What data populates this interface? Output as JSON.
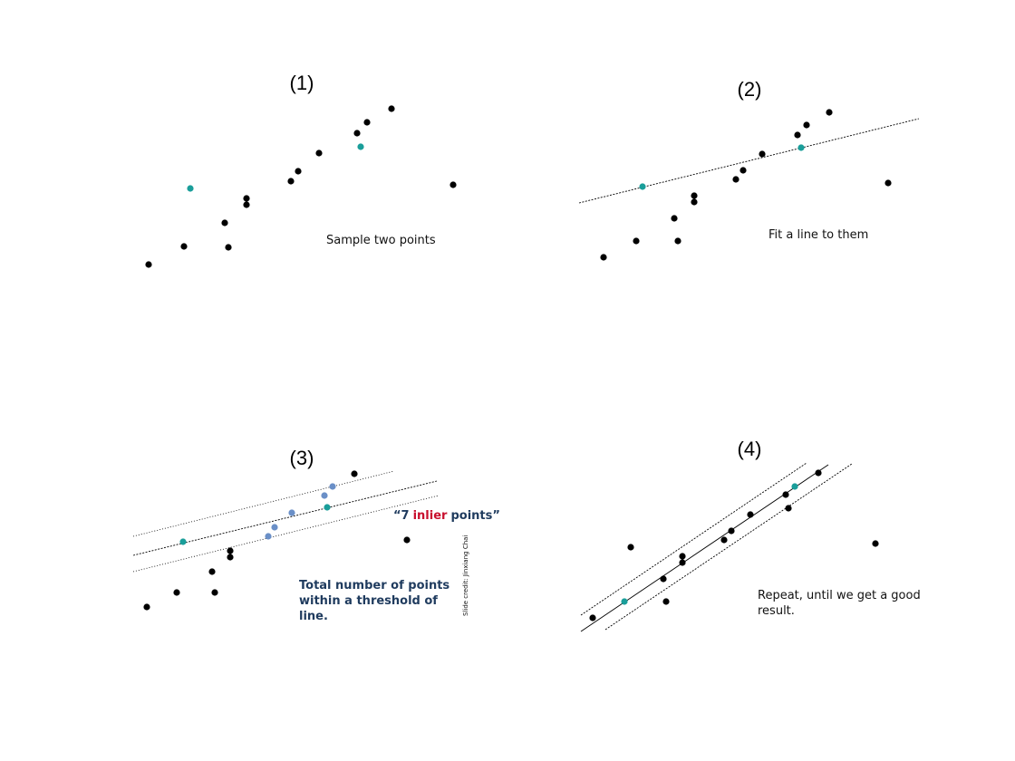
{
  "colors": {
    "point": "#000000",
    "sample": "#1a9e9a",
    "inlier": "#6a8fc7",
    "highlight": "#c8102e",
    "navy": "#1f3b5e",
    "line": "#000000"
  },
  "panels": [
    {
      "label": "(1)",
      "caption_lines": [
        "Sample two points"
      ],
      "black_points": [
        [
          164,
          292
        ],
        [
          203,
          272
        ],
        [
          252,
          273
        ],
        [
          248,
          246
        ],
        [
          272,
          226
        ],
        [
          272,
          219
        ],
        [
          321,
          200
        ],
        [
          329,
          189
        ],
        [
          352,
          169
        ],
        [
          394,
          147
        ],
        [
          405,
          135
        ],
        [
          432,
          120
        ],
        [
          500,
          204
        ]
      ],
      "sample_points": [
        [
          210,
          208
        ],
        [
          398,
          162
        ]
      ],
      "inlier_points": [],
      "lines": []
    },
    {
      "label": "(2)",
      "caption_lines": [
        "Fit a line to them"
      ],
      "black_points": [
        [
          666,
          284
        ],
        [
          702,
          266
        ],
        [
          748,
          266
        ],
        [
          744,
          241
        ],
        [
          766,
          223
        ],
        [
          766,
          216
        ],
        [
          812,
          198
        ],
        [
          820,
          188
        ],
        [
          841,
          170
        ],
        [
          880,
          149
        ],
        [
          890,
          138
        ],
        [
          915,
          124
        ],
        [
          980,
          202
        ]
      ],
      "sample_points": [
        [
          709,
          206
        ],
        [
          884,
          163
        ]
      ],
      "inlier_points": [],
      "lines": [
        {
          "p1": [
            639,
            224
          ],
          "p2": [
            1014,
            131
          ],
          "style": "dense"
        }
      ]
    },
    {
      "label": "(3)",
      "caption_lines": [
        "Total number of points",
        "within a threshold of",
        "line."
      ],
      "annotation": {
        "open_quote": "“",
        "count": "7",
        "highlight": "inlier",
        "rest": "points”"
      },
      "credit": "Slide credit: Jinxiang Chai",
      "black_points": [
        [
          162,
          670
        ],
        [
          195,
          654
        ],
        [
          237,
          654
        ],
        [
          234,
          631
        ],
        [
          254,
          615
        ],
        [
          254,
          608
        ],
        [
          391,
          523
        ],
        [
          449,
          596
        ]
      ],
      "sample_points": [
        [
          202,
          598
        ],
        [
          361,
          560
        ]
      ],
      "inlier_points": [
        [
          296,
          592
        ],
        [
          303,
          582
        ],
        [
          322,
          566
        ],
        [
          358,
          547
        ],
        [
          367,
          537
        ]
      ],
      "lines": [
        {
          "p1": [
            147,
            613
          ],
          "p2": [
            482,
            531
          ],
          "style": "dense"
        },
        {
          "p1": [
            147,
            592
          ],
          "p2": [
            435,
            520
          ],
          "style": "sparse"
        },
        {
          "p1": [
            147,
            631
          ],
          "p2": [
            484,
            547
          ],
          "style": "sparse"
        }
      ]
    },
    {
      "label": "(4)",
      "caption_lines": [
        "Repeat, until we get a good",
        "result."
      ],
      "black_points": [
        [
          696,
          604
        ],
        [
          654,
          682
        ],
        [
          735,
          664
        ],
        [
          732,
          639
        ],
        [
          753,
          621
        ],
        [
          753,
          614
        ],
        [
          799,
          596
        ],
        [
          807,
          586
        ],
        [
          828,
          568
        ],
        [
          867,
          546
        ],
        [
          870,
          561
        ],
        [
          903,
          522
        ],
        [
          966,
          600
        ]
      ],
      "sample_points": [
        [
          689,
          664
        ],
        [
          877,
          537
        ]
      ],
      "inlier_points": [],
      "lines": [
        {
          "p1": [
            641,
            697
          ],
          "p2": [
            914,
            513
          ],
          "style": "solid"
        },
        {
          "p1": [
            641,
            679
          ],
          "p2": [
            890,
            511
          ],
          "style": "dense"
        },
        {
          "p1": [
            668,
            695
          ],
          "p2": [
            940,
            512
          ],
          "style": "dense"
        }
      ]
    }
  ]
}
